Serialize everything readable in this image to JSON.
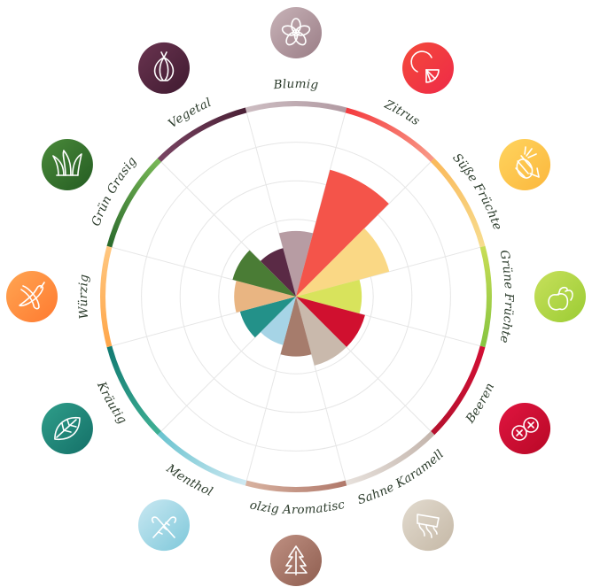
{
  "chart_data": {
    "type": "polar-area",
    "max_value": 10,
    "grid_rings": [
      2,
      4,
      6,
      8,
      10
    ],
    "categories": [
      {
        "label": "Blumig",
        "value": 3.4,
        "color": "#b79ca3",
        "icon": "flower-icon"
      },
      {
        "label": "Zitrus",
        "value": 6.8,
        "color": "#f4544a",
        "icon": "citrus-icon"
      },
      {
        "label": "Süße Früchte",
        "value": 5.0,
        "color": "#fad885",
        "icon": "pineapple-icon"
      },
      {
        "label": "Grüne Früchte",
        "value": 3.4,
        "color": "#d8e35c",
        "icon": "apple-pear-icon"
      },
      {
        "label": "Beeren",
        "value": 3.7,
        "color": "#d0102f",
        "icon": "berries-icon"
      },
      {
        "label": "Sahne Karamell",
        "value": 3.7,
        "color": "#c9b9ac",
        "icon": "caramel-icon"
      },
      {
        "label": "Holzig Aromatisch",
        "value": 3.1,
        "color": "#a67c6c",
        "icon": "wood-tree-icon"
      },
      {
        "label": "Menthol",
        "value": 2.6,
        "color": "#a6d4e6",
        "icon": "candy-cane-icon"
      },
      {
        "label": "Kräutig",
        "value": 3.0,
        "color": "#239189",
        "icon": "leaf-icon"
      },
      {
        "label": "Würzig",
        "value": 3.2,
        "color": "#e9b582",
        "icon": "chili-icon"
      },
      {
        "label": "Grün Grasig",
        "value": 3.4,
        "color": "#4a7c35",
        "icon": "grass-icon"
      },
      {
        "label": "Vegetal",
        "value": 2.6,
        "color": "#5a2a45",
        "icon": "onion-icon"
      }
    ],
    "ring_gradients": [
      [
        "#cdbdc2",
        "#b19aa2"
      ],
      [
        "#f43a3e",
        "#f89a88"
      ],
      [
        "#fab95a",
        "#f7dc8e"
      ],
      [
        "#c8dd55",
        "#86c440"
      ],
      [
        "#d20f34",
        "#b5112e"
      ],
      [
        "#c3b4ab",
        "#e7e1dc"
      ],
      [
        "#b0786a",
        "#d8b2a0"
      ],
      [
        "#cfe9f2",
        "#69c3cf"
      ],
      [
        "#3fb094",
        "#127a72"
      ],
      [
        "#ffa64a",
        "#ffc780"
      ],
      [
        "#2a6a2c",
        "#78b856"
      ],
      [
        "#7a4564",
        "#4a2035"
      ]
    ],
    "icon_gradients": [
      [
        "#c8b3b8",
        "#9a7d86"
      ],
      [
        "#f44a3a",
        "#ee2a48"
      ],
      [
        "#ffd45e",
        "#fbb73d"
      ],
      [
        "#c7e05c",
        "#9bcc33"
      ],
      [
        "#e01540",
        "#b80826"
      ],
      [
        "#e2dbcf",
        "#c5b8a6"
      ],
      [
        "#bf9082",
        "#8f5e50"
      ],
      [
        "#c9e8f2",
        "#7ec8da"
      ],
      [
        "#2f9e8a",
        "#147068"
      ],
      [
        "#ffa552",
        "#ff7a30"
      ],
      [
        "#4a8a3a",
        "#245c22"
      ],
      [
        "#6a3450",
        "#3f1a30"
      ]
    ]
  }
}
